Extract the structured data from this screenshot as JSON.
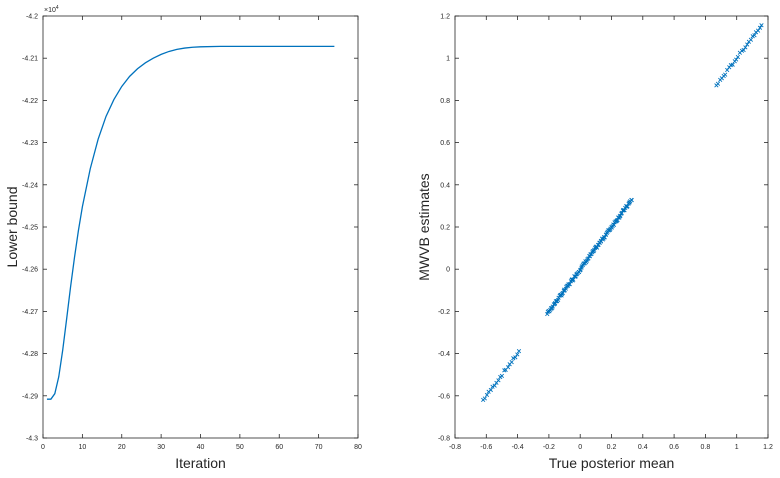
{
  "chart_data": [
    {
      "type": "line",
      "title": "",
      "xlabel": "Iteration",
      "ylabel": "Lower bound",
      "y_multiplier": "×10^4",
      "xlim": [
        0,
        80
      ],
      "ylim": [
        -4.3,
        -4.2
      ],
      "xticks": [
        0,
        10,
        20,
        30,
        40,
        50,
        60,
        70,
        80
      ],
      "yticks": [
        -4.3,
        -4.29,
        -4.28,
        -4.27,
        -4.26,
        -4.25,
        -4.24,
        -4.23,
        -4.22,
        -4.21,
        -4.2
      ],
      "grid": false,
      "line_color": "#0072BD",
      "series": [
        {
          "x": [
            1,
            2,
            3,
            4,
            5,
            6,
            7,
            8,
            9,
            10,
            12,
            14,
            16,
            18,
            20,
            22,
            24,
            26,
            28,
            30,
            32,
            34,
            36,
            38,
            40,
            45,
            50,
            55,
            60,
            65,
            70,
            74
          ],
          "values": [
            -4.2908,
            -4.2908,
            -4.2895,
            -4.2855,
            -4.2792,
            -4.2718,
            -4.2642,
            -4.2572,
            -4.2508,
            -4.2452,
            -4.2362,
            -4.2292,
            -4.2238,
            -4.2198,
            -4.2167,
            -4.2143,
            -4.2125,
            -4.2111,
            -4.21,
            -4.2091,
            -4.2084,
            -4.2079,
            -4.2076,
            -4.2074,
            -4.2073,
            -4.2072,
            -4.2072,
            -4.2072,
            -4.2072,
            -4.2072,
            -4.2072,
            -4.2072
          ]
        }
      ]
    },
    {
      "type": "scatter",
      "title": "",
      "xlabel": "True posterior mean",
      "ylabel": "MWVB estimates",
      "xlim": [
        -0.8,
        1.2
      ],
      "ylim": [
        -0.8,
        1.2
      ],
      "xticks": [
        -0.8,
        -0.6,
        -0.4,
        -0.2,
        0,
        0.2,
        0.4,
        0.6,
        0.8,
        1,
        1.2
      ],
      "yticks": [
        -0.8,
        -0.6,
        -0.4,
        -0.2,
        0,
        0.2,
        0.4,
        0.6,
        0.8,
        1,
        1.2
      ],
      "grid": false,
      "marker": "x",
      "marker_color": "#0072BD",
      "clusters": [
        {
          "x_from": -0.62,
          "x_to": -0.39,
          "n": 20
        },
        {
          "x_from": -0.21,
          "x_to": 0.33,
          "n": 120
        },
        {
          "x_from": 0.87,
          "x_to": 1.16,
          "n": 26
        }
      ]
    }
  ]
}
